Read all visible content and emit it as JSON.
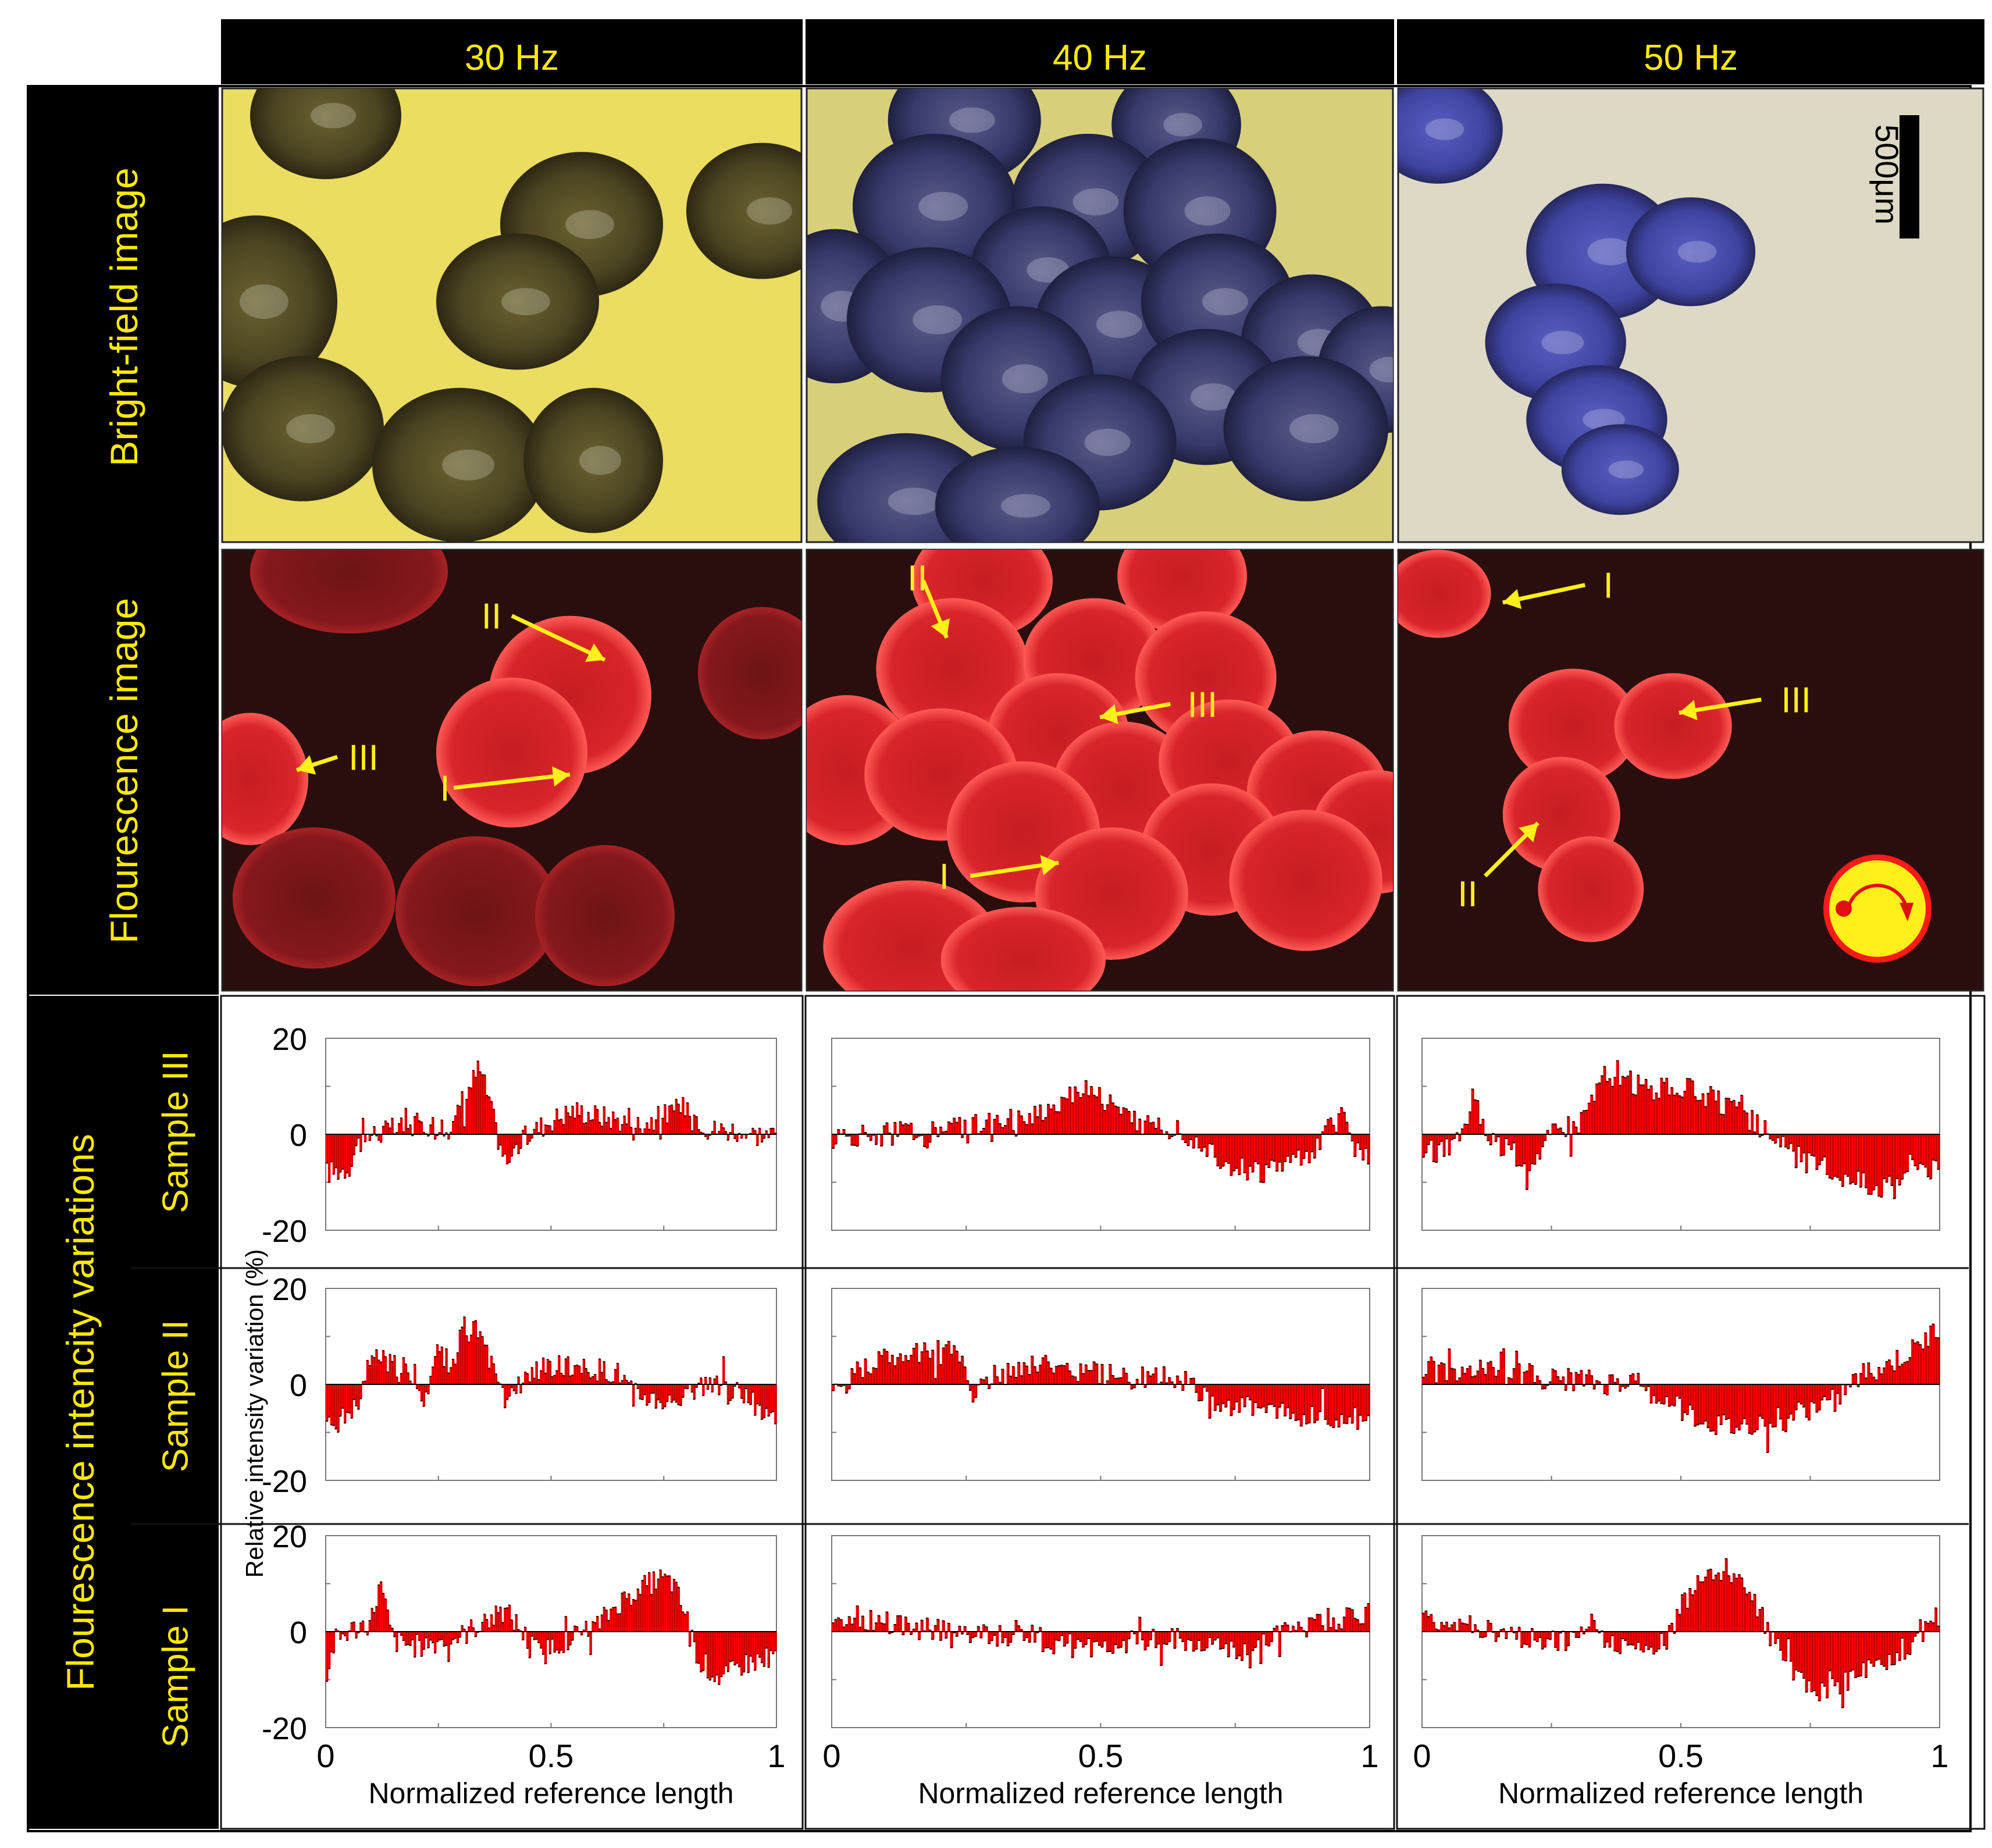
{
  "columns": [
    "30 Hz",
    "40 Hz",
    "50 Hz"
  ],
  "rows": {
    "bright_field": "Bright-field image",
    "fluorescence": "Flourescence image",
    "intensity": "Flourescence intencity variations"
  },
  "samples": [
    "Sample III",
    "Sample II",
    "Sample I"
  ],
  "scale_bar": "500μm",
  "markers": {
    "30 Hz": [
      {
        "label": "II"
      },
      {
        "label": "III"
      },
      {
        "label": "I"
      }
    ],
    "40 Hz": [
      {
        "label": "II"
      },
      {
        "label": "III"
      },
      {
        "label": "I"
      }
    ],
    "50 Hz": [
      {
        "label": "I"
      },
      {
        "label": "III"
      },
      {
        "label": "II"
      }
    ]
  },
  "colors": {
    "header_bg": "#000000",
    "header_text": "#ffea00",
    "bar_fill": "#ff0000",
    "bar_dark": "#3a0000",
    "bright_30": "#ebdc62",
    "bright_40": "#d8cf7a",
    "bright_50": "#ddd9c4",
    "fluor_bg": "#2a0e0e",
    "cell_dark_30": "#4b4422",
    "cell_dark_40": "#3a3d70",
    "cell_dark_50": "#3f43a0",
    "cell_red": "#e0262a",
    "arrow": "#ffef1a"
  },
  "chart_data": {
    "type": "bar",
    "title": "",
    "xlabel": "Normalized reference length",
    "ylabel": "Relative intensity variation (%)",
    "xlim": [
      0,
      1
    ],
    "ylim": [
      -20,
      20
    ],
    "xticks": [
      "0",
      "0.5",
      "1"
    ],
    "yticks": [
      "20",
      "0",
      "-20"
    ],
    "panels": [
      {
        "frequency": "30 Hz",
        "sample": "Sample III",
        "profile": [
          [
            0,
            -8
          ],
          [
            0.05,
            -7
          ],
          [
            0.07,
            -2
          ],
          [
            0.1,
            0
          ],
          [
            0.15,
            1
          ],
          [
            0.2,
            2
          ],
          [
            0.25,
            2
          ],
          [
            0.28,
            1
          ],
          [
            0.3,
            6
          ],
          [
            0.32,
            10
          ],
          [
            0.34,
            14
          ],
          [
            0.36,
            8
          ],
          [
            0.38,
            0
          ],
          [
            0.4,
            -6
          ],
          [
            0.42,
            -3
          ],
          [
            0.45,
            0
          ],
          [
            0.5,
            3
          ],
          [
            0.55,
            5
          ],
          [
            0.6,
            4
          ],
          [
            0.65,
            3
          ],
          [
            0.7,
            2
          ],
          [
            0.75,
            4
          ],
          [
            0.78,
            5
          ],
          [
            0.8,
            6
          ],
          [
            0.82,
            4
          ],
          [
            0.85,
            1
          ],
          [
            0.9,
            1
          ],
          [
            0.95,
            0
          ],
          [
            1,
            0
          ]
        ]
      },
      {
        "frequency": "40 Hz",
        "sample": "Sample III",
        "profile": [
          [
            0,
            -1
          ],
          [
            0.1,
            0
          ],
          [
            0.2,
            1
          ],
          [
            0.3,
            2
          ],
          [
            0.4,
            5
          ],
          [
            0.45,
            9
          ],
          [
            0.48,
            10
          ],
          [
            0.52,
            6
          ],
          [
            0.55,
            3
          ],
          [
            0.6,
            2
          ],
          [
            0.65,
            1
          ],
          [
            0.7,
            -3
          ],
          [
            0.75,
            -7
          ],
          [
            0.8,
            -8
          ],
          [
            0.85,
            -6
          ],
          [
            0.9,
            -3
          ],
          [
            0.93,
            2
          ],
          [
            0.95,
            4
          ],
          [
            0.97,
            -2
          ],
          [
            1,
            -5
          ]
        ]
      },
      {
        "frequency": "50 Hz",
        "sample": "Sample III",
        "profile": [
          [
            0,
            -4
          ],
          [
            0.05,
            -3
          ],
          [
            0.08,
            0
          ],
          [
            0.1,
            10
          ],
          [
            0.12,
            1
          ],
          [
            0.15,
            -2
          ],
          [
            0.2,
            -6
          ],
          [
            0.23,
            -3
          ],
          [
            0.25,
            0
          ],
          [
            0.3,
            2
          ],
          [
            0.33,
            8
          ],
          [
            0.35,
            12
          ],
          [
            0.4,
            11
          ],
          [
            0.45,
            9
          ],
          [
            0.5,
            10
          ],
          [
            0.55,
            8
          ],
          [
            0.6,
            5
          ],
          [
            0.63,
            3
          ],
          [
            0.68,
            0
          ],
          [
            0.7,
            -3
          ],
          [
            0.75,
            -6
          ],
          [
            0.8,
            -8
          ],
          [
            0.85,
            -10
          ],
          [
            0.9,
            -11
          ],
          [
            0.95,
            -5
          ],
          [
            1,
            -8
          ]
        ]
      },
      {
        "frequency": "30 Hz",
        "sample": "Sample II",
        "profile": [
          [
            0,
            -8
          ],
          [
            0.05,
            -7
          ],
          [
            0.08,
            -3
          ],
          [
            0.1,
            6
          ],
          [
            0.15,
            4
          ],
          [
            0.2,
            2
          ],
          [
            0.22,
            -3
          ],
          [
            0.25,
            8
          ],
          [
            0.28,
            3
          ],
          [
            0.3,
            10
          ],
          [
            0.33,
            12
          ],
          [
            0.36,
            6
          ],
          [
            0.38,
            0
          ],
          [
            0.4,
            -4
          ],
          [
            0.45,
            2
          ],
          [
            0.5,
            4
          ],
          [
            0.55,
            3
          ],
          [
            0.6,
            3
          ],
          [
            0.65,
            2
          ],
          [
            0.68,
            -2
          ],
          [
            0.72,
            -3
          ],
          [
            0.76,
            -4
          ],
          [
            0.8,
            -1
          ],
          [
            0.85,
            0
          ],
          [
            0.9,
            -1
          ],
          [
            0.95,
            -4
          ],
          [
            1,
            -7
          ]
        ]
      },
      {
        "frequency": "40 Hz",
        "sample": "Sample II",
        "profile": [
          [
            0,
            -3
          ],
          [
            0.05,
            3
          ],
          [
            0.1,
            5
          ],
          [
            0.15,
            6
          ],
          [
            0.2,
            7
          ],
          [
            0.23,
            8
          ],
          [
            0.26,
            -2
          ],
          [
            0.3,
            2
          ],
          [
            0.35,
            3
          ],
          [
            0.4,
            5
          ],
          [
            0.45,
            3
          ],
          [
            0.5,
            2
          ],
          [
            0.55,
            1
          ],
          [
            0.6,
            2
          ],
          [
            0.65,
            1
          ],
          [
            0.7,
            -3
          ],
          [
            0.75,
            -5
          ],
          [
            0.8,
            -4
          ],
          [
            0.85,
            -6
          ],
          [
            0.9,
            -7
          ],
          [
            0.95,
            -8
          ],
          [
            1,
            -6
          ]
        ]
      },
      {
        "frequency": "50 Hz",
        "sample": "Sample II",
        "profile": [
          [
            0,
            4
          ],
          [
            0.05,
            3
          ],
          [
            0.1,
            3
          ],
          [
            0.15,
            2
          ],
          [
            0.2,
            2
          ],
          [
            0.25,
            1
          ],
          [
            0.3,
            1
          ],
          [
            0.35,
            0
          ],
          [
            0.4,
            1
          ],
          [
            0.45,
            -2
          ],
          [
            0.5,
            -5
          ],
          [
            0.55,
            -8
          ],
          [
            0.6,
            -9
          ],
          [
            0.65,
            -8
          ],
          [
            0.7,
            -7
          ],
          [
            0.75,
            -5
          ],
          [
            0.8,
            -3
          ],
          [
            0.85,
            2
          ],
          [
            0.9,
            4
          ],
          [
            0.95,
            7
          ],
          [
            1,
            12
          ]
        ]
      },
      {
        "frequency": "30 Hz",
        "sample": "Sample I",
        "profile": [
          [
            0,
            -10
          ],
          [
            0.02,
            -2
          ],
          [
            0.05,
            0
          ],
          [
            0.1,
            2
          ],
          [
            0.12,
            10
          ],
          [
            0.15,
            -2
          ],
          [
            0.2,
            -3
          ],
          [
            0.25,
            -2
          ],
          [
            0.3,
            -1
          ],
          [
            0.35,
            2
          ],
          [
            0.4,
            4
          ],
          [
            0.42,
            2
          ],
          [
            0.45,
            -2
          ],
          [
            0.48,
            -5
          ],
          [
            0.5,
            -3
          ],
          [
            0.55,
            -1
          ],
          [
            0.6,
            1
          ],
          [
            0.65,
            6
          ],
          [
            0.7,
            9
          ],
          [
            0.74,
            11
          ],
          [
            0.77,
            10
          ],
          [
            0.8,
            3
          ],
          [
            0.82,
            -4
          ],
          [
            0.85,
            -8
          ],
          [
            0.88,
            -10
          ],
          [
            0.92,
            -7
          ],
          [
            0.96,
            -6
          ],
          [
            1,
            -5
          ]
        ]
      },
      {
        "frequency": "40 Hz",
        "sample": "Sample I",
        "profile": [
          [
            0,
            2
          ],
          [
            0.05,
            3
          ],
          [
            0.1,
            2
          ],
          [
            0.15,
            1
          ],
          [
            0.2,
            0
          ],
          [
            0.25,
            -1
          ],
          [
            0.3,
            -1
          ],
          [
            0.35,
            0
          ],
          [
            0.4,
            -2
          ],
          [
            0.45,
            -3
          ],
          [
            0.5,
            -3
          ],
          [
            0.55,
            -2
          ],
          [
            0.6,
            -1
          ],
          [
            0.65,
            -2
          ],
          [
            0.7,
            -3
          ],
          [
            0.75,
            -4
          ],
          [
            0.8,
            -2
          ],
          [
            0.85,
            0
          ],
          [
            0.9,
            2
          ],
          [
            0.95,
            3
          ],
          [
            1,
            4
          ]
        ]
      },
      {
        "frequency": "50 Hz",
        "sample": "Sample I",
        "profile": [
          [
            0,
            3
          ],
          [
            0.05,
            2
          ],
          [
            0.1,
            1
          ],
          [
            0.15,
            0
          ],
          [
            0.2,
            -1
          ],
          [
            0.25,
            -2
          ],
          [
            0.3,
            -2
          ],
          [
            0.33,
            5
          ],
          [
            0.35,
            -2
          ],
          [
            0.4,
            -4
          ],
          [
            0.45,
            -3
          ],
          [
            0.48,
            -1
          ],
          [
            0.5,
            5
          ],
          [
            0.53,
            10
          ],
          [
            0.56,
            12
          ],
          [
            0.6,
            11
          ],
          [
            0.63,
            9
          ],
          [
            0.66,
            2
          ],
          [
            0.7,
            -6
          ],
          [
            0.75,
            -11
          ],
          [
            0.78,
            -13
          ],
          [
            0.82,
            -10
          ],
          [
            0.85,
            -8
          ],
          [
            0.9,
            -6
          ],
          [
            0.95,
            -2
          ],
          [
            1,
            3
          ]
        ]
      }
    ]
  }
}
